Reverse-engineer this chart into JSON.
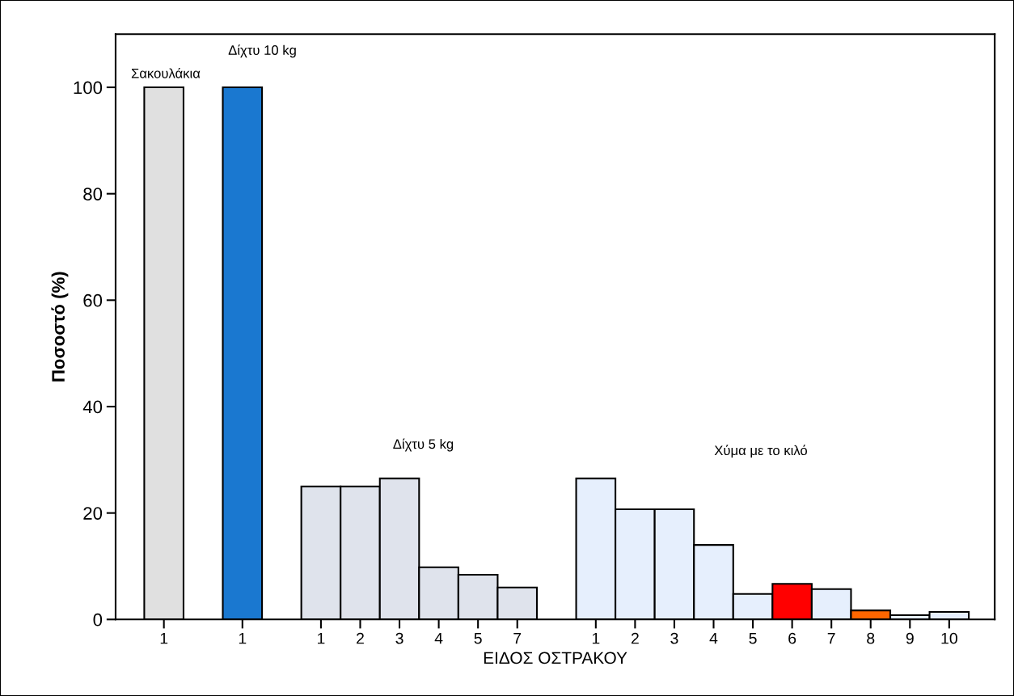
{
  "chart_data": {
    "type": "bar",
    "xlabel": "ΕΙΔΟΣ ΟΣΤΡΑΚΟΥ",
    "ylabel": "Ποσοστό (%)",
    "categories": [
      "1",
      null,
      "1",
      null,
      "1",
      "2",
      "3",
      "4",
      "5",
      "7",
      null,
      "1",
      "2",
      "3",
      "4",
      "5",
      "6",
      "7",
      "8",
      "9",
      "10"
    ],
    "values": [
      100,
      null,
      100,
      null,
      25,
      25,
      26.5,
      9.8,
      8.4,
      6.0,
      null,
      26.5,
      20.7,
      20.7,
      14.0,
      4.8,
      6.7,
      5.7,
      1.7,
      0.8,
      1.4
    ],
    "colors": [
      "#e0e0e0",
      null,
      "#1a78d0",
      null,
      "#dfe3ec",
      "#dfe3ec",
      "#dfe3ec",
      "#dfe3ec",
      "#dfe3ec",
      "#dfe3ec",
      null,
      "#e6effd",
      "#e6effd",
      "#e6effd",
      "#e6effd",
      "#e6effd",
      "#ff0000",
      "#e6effd",
      "#ff6600",
      "#e6effd",
      "#e6effd"
    ],
    "ylim": [
      0,
      110
    ],
    "yticks": [
      0,
      20,
      40,
      60,
      80,
      100
    ],
    "grid": false,
    "legend": false,
    "annotations": [
      "Σακουλάκια",
      "Δίχτυ 10 kg",
      "Δίχτυ 5 kg",
      "Χύμα με το κιλό"
    ]
  }
}
